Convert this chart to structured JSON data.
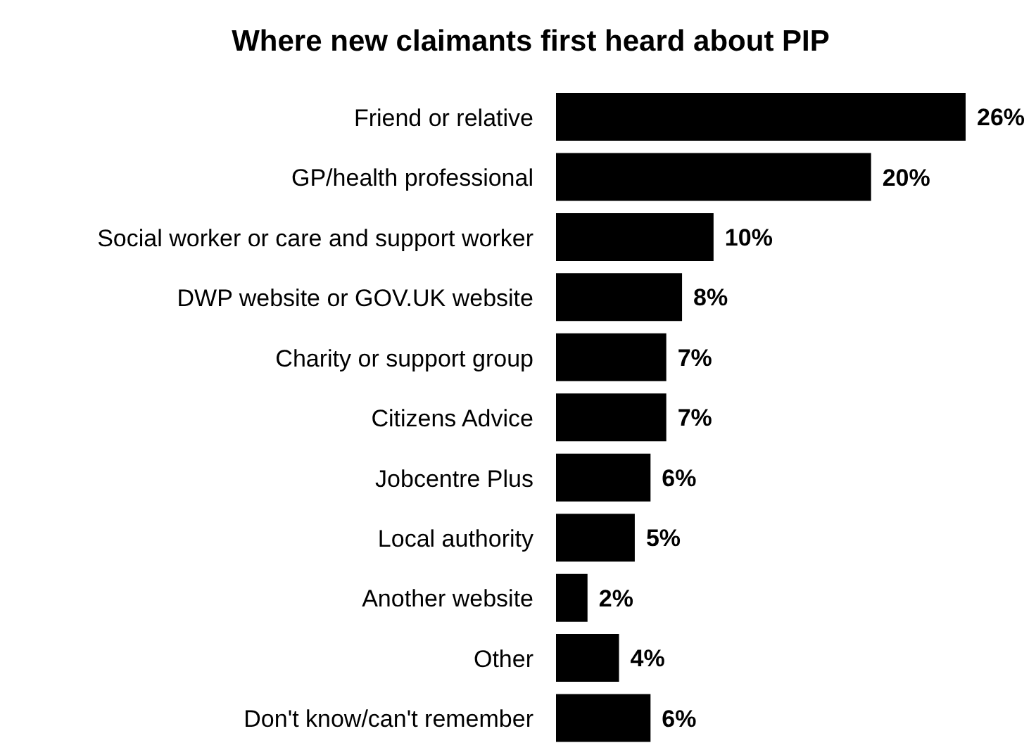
{
  "chart_data": {
    "type": "bar",
    "orientation": "horizontal",
    "title": "Where new claimants first heard about PIP",
    "categories": [
      "Friend or relative",
      "GP/health professional",
      "Social worker or care and support worker",
      "DWP website or GOV.UK website",
      "Charity or support group",
      "Citizens Advice",
      "Jobcentre Plus",
      "Local authority",
      "Another website",
      "Other",
      "Don't know/can't remember"
    ],
    "values": [
      26,
      20,
      10,
      8,
      7,
      7,
      6,
      5,
      2,
      4,
      6
    ],
    "value_labels": [
      "26%",
      "20%",
      "10%",
      "8%",
      "7%",
      "7%",
      "6%",
      "5%",
      "2%",
      "4%",
      "6%"
    ],
    "color": "#000000",
    "grid": false,
    "legend": false
  }
}
